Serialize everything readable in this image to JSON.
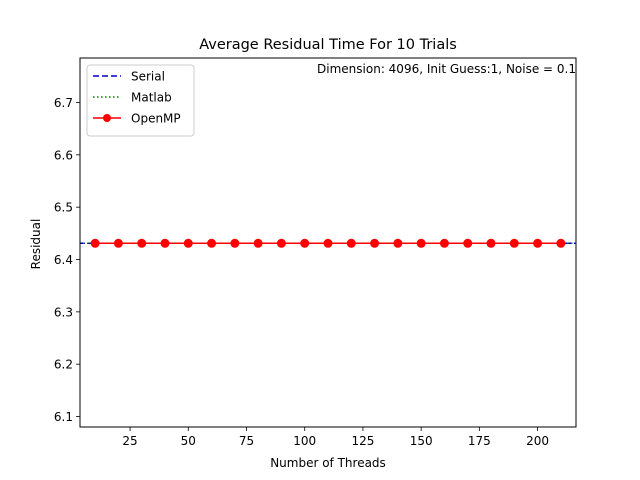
{
  "chart_data": {
    "type": "line",
    "title": "Average Residual Time For 10 Trials",
    "xlabel": "Number of Threads",
    "ylabel": "Residual",
    "annotation": "Dimension: 4096, Init Guess:1, Noise = 0.1",
    "xlim": [
      3.5,
      216.5
    ],
    "ylim": [
      6.08,
      6.785
    ],
    "xticks": [
      25,
      50,
      75,
      100,
      125,
      150,
      175,
      200
    ],
    "yticks": [
      6.1,
      6.2,
      6.3,
      6.4,
      6.5,
      6.6,
      6.7
    ],
    "grid": false,
    "legend_position": "top-left",
    "x": [
      10,
      20,
      30,
      40,
      50,
      60,
      70,
      80,
      90,
      100,
      110,
      120,
      130,
      140,
      150,
      160,
      170,
      180,
      190,
      200,
      210
    ],
    "series": [
      {
        "name": "Serial",
        "style": "dashed",
        "color": "#0000bf",
        "values": [
          6.431,
          6.431,
          6.431,
          6.431,
          6.431,
          6.431,
          6.431,
          6.431,
          6.431,
          6.431,
          6.431,
          6.431,
          6.431,
          6.431,
          6.431,
          6.431,
          6.431,
          6.431,
          6.431,
          6.431,
          6.431
        ]
      },
      {
        "name": "Matlab",
        "style": "dotted",
        "color": "#008000",
        "values": [
          6.431,
          6.431,
          6.431,
          6.431,
          6.431,
          6.431,
          6.431,
          6.431,
          6.431,
          6.431,
          6.431,
          6.431,
          6.431,
          6.431,
          6.431,
          6.431,
          6.431,
          6.431,
          6.431,
          6.431,
          6.431
        ]
      },
      {
        "name": "OpenMP",
        "style": "solid-marker",
        "color": "#ff0000",
        "values": [
          6.431,
          6.431,
          6.431,
          6.431,
          6.431,
          6.431,
          6.431,
          6.431,
          6.431,
          6.431,
          6.431,
          6.431,
          6.431,
          6.431,
          6.431,
          6.431,
          6.431,
          6.431,
          6.431,
          6.431,
          6.431
        ]
      }
    ]
  }
}
